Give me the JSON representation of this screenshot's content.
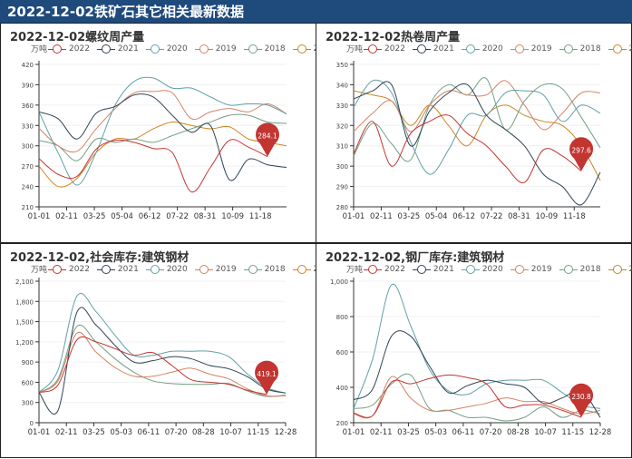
{
  "header": {
    "title": "2022-12-02铁矿石其它相关最新数据"
  },
  "legend_unit": "万吨",
  "series_colors": {
    "2022": "#c23531",
    "2021": "#2f4554",
    "2020": "#61a0a8",
    "2019": "#d48265",
    "2018": "#749f83",
    "2017": "#ca8622"
  },
  "chart_data": [
    {
      "type": "line",
      "title": "2022-12-02螺纹周产量",
      "unit": "万吨",
      "ylim": [
        210,
        420
      ],
      "yticks": [
        "210",
        "240",
        "270",
        "300",
        "330",
        "360",
        "390",
        "420"
      ],
      "xticks": [
        "01-01",
        "02-11",
        "03-25",
        "05-04",
        "06-12",
        "07-22",
        "08-31",
        "10-09",
        "11-18"
      ],
      "x_weeks": 52,
      "marker": {
        "series": "2022",
        "label": "284.1"
      },
      "series": [
        {
          "name": "2022",
          "values": [
            281,
            258,
            255,
            295,
            308,
            305,
            296,
            290,
            232,
            268,
            308,
            298,
            284.1
          ]
        },
        {
          "name": "2021",
          "values": [
            350,
            340,
            310,
            348,
            358,
            375,
            372,
            345,
            320,
            330,
            250,
            280,
            272,
            268
          ]
        },
        {
          "name": "2020",
          "values": [
            350,
            290,
            242,
            290,
            360,
            395,
            400,
            385,
            385,
            372,
            360,
            362,
            360,
            347
          ]
        },
        {
          "name": "2019",
          "values": [
            326,
            300,
            292,
            325,
            355,
            378,
            380,
            378,
            340,
            350,
            355,
            350,
            362,
            347
          ]
        },
        {
          "name": "2018",
          "values": [
            308,
            300,
            278,
            310,
            305,
            310,
            305,
            315,
            325,
            335,
            345,
            345,
            335,
            333
          ]
        },
        {
          "name": "2017",
          "values": [
            270,
            240,
            252,
            290,
            310,
            310,
            325,
            335,
            330,
            325,
            328,
            310,
            305,
            300
          ]
        }
      ]
    },
    {
      "type": "line",
      "title": "2022-12-02热卷周产量",
      "unit": "万吨",
      "ylim": [
        280,
        350
      ],
      "yticks": [
        "280",
        "290",
        "300",
        "310",
        "320",
        "330",
        "340",
        "350"
      ],
      "xticks": [
        "01-01",
        "02-11",
        "03-25",
        "05-04",
        "06-12",
        "07-22",
        "08-31",
        "10-09",
        "11-18"
      ],
      "x_weeks": 52,
      "marker": {
        "series": "2022",
        "label": "297.6"
      },
      "series": [
        {
          "name": "2022",
          "values": [
            306,
            322,
            300,
            316,
            322,
            325,
            316,
            310,
            300,
            292,
            308,
            305,
            297.6
          ]
        },
        {
          "name": "2021",
          "values": [
            333,
            337,
            340,
            310,
            327,
            336,
            340,
            325,
            318,
            310,
            296,
            290,
            281,
            297
          ]
        },
        {
          "name": "2020",
          "values": [
            329,
            342,
            336,
            312,
            296,
            308,
            325,
            325,
            336,
            337,
            335,
            322,
            330,
            326
          ]
        },
        {
          "name": "2019",
          "values": [
            317,
            326,
            332,
            317,
            330,
            337,
            335,
            335,
            342,
            330,
            318,
            326,
            336,
            336
          ]
        },
        {
          "name": "2018",
          "values": [
            305,
            321,
            311,
            303,
            330,
            340,
            335,
            343,
            318,
            332,
            340,
            338,
            324,
            309
          ]
        },
        {
          "name": "2017",
          "values": [
            337,
            335,
            332,
            320,
            330,
            320,
            310,
            325,
            330,
            325,
            322,
            320,
            310,
            293
          ]
        }
      ]
    },
    {
      "type": "line",
      "title": "2022-12-02,社会库存:建筑钢材",
      "unit": "万吨",
      "ylim": [
        0,
        2100
      ],
      "yticks": [
        "0",
        "300",
        "600",
        "900",
        "1,200",
        "1,500",
        "1,800",
        "2,100"
      ],
      "xticks": [
        "01-01",
        "02-11",
        "03-25",
        "05-03",
        "06-11",
        "07-20",
        "08-28",
        "10-07",
        "11-15",
        "12-28"
      ],
      "x_weeks": 52,
      "marker": {
        "series": "2022",
        "label": "419.1"
      },
      "series": [
        {
          "name": "2022",
          "values": [
            450,
            560,
            1230,
            1200,
            1100,
            1000,
            1040,
            850,
            640,
            600,
            570,
            480,
            419.1
          ]
        },
        {
          "name": "2021",
          "values": [
            450,
            180,
            1640,
            1450,
            1150,
            900,
            920,
            980,
            950,
            850,
            800,
            680,
            500,
            440
          ]
        },
        {
          "name": "2020",
          "values": [
            450,
            780,
            1880,
            1650,
            1300,
            1000,
            1000,
            1060,
            1060,
            1060,
            980,
            720,
            520,
            440
          ]
        },
        {
          "name": "2019",
          "values": [
            450,
            620,
            1330,
            1050,
            820,
            690,
            690,
            750,
            810,
            720,
            650,
            500,
            400,
            400
          ]
        },
        {
          "name": "2018",
          "values": [
            450,
            650,
            1430,
            1200,
            950,
            750,
            620,
            580,
            570,
            570,
            580,
            470,
            390,
            410
          ]
        },
        {
          "name": "2017",
          "values": []
        }
      ]
    },
    {
      "type": "line",
      "title": "2022-12-02,钢厂库存:建筑钢材",
      "unit": "万吨",
      "ylim": [
        200,
        1000
      ],
      "yticks": [
        "200",
        "400",
        "600",
        "800",
        "1,000"
      ],
      "xticks": [
        "01-01",
        "02-11",
        "03-25",
        "05-03",
        "06-11",
        "07-20",
        "08-28",
        "10-07",
        "11-15",
        "12-28"
      ],
      "x_weeks": 52,
      "marker": {
        "series": "2022",
        "label": "230.8"
      },
      "series": [
        {
          "name": "2022",
          "values": [
            255,
            240,
            430,
            420,
            450,
            470,
            455,
            420,
            290,
            300,
            300,
            270,
            230.8
          ]
        },
        {
          "name": "2021",
          "values": [
            330,
            390,
            690,
            690,
            520,
            370,
            410,
            440,
            420,
            400,
            310,
            340,
            380,
            230
          ]
        },
        {
          "name": "2020",
          "values": [
            280,
            560,
            980,
            750,
            500,
            380,
            360,
            420,
            440,
            440,
            440,
            370,
            300,
            280
          ]
        },
        {
          "name": "2019",
          "values": [
            250,
            240,
            460,
            340,
            270,
            270,
            290,
            310,
            340,
            320,
            320,
            280,
            250,
            270
          ]
        },
        {
          "name": "2018",
          "values": [
            280,
            300,
            420,
            470,
            280,
            270,
            230,
            230,
            210,
            230,
            290,
            230,
            270,
            250
          ]
        },
        {
          "name": "2017",
          "values": []
        }
      ]
    }
  ]
}
